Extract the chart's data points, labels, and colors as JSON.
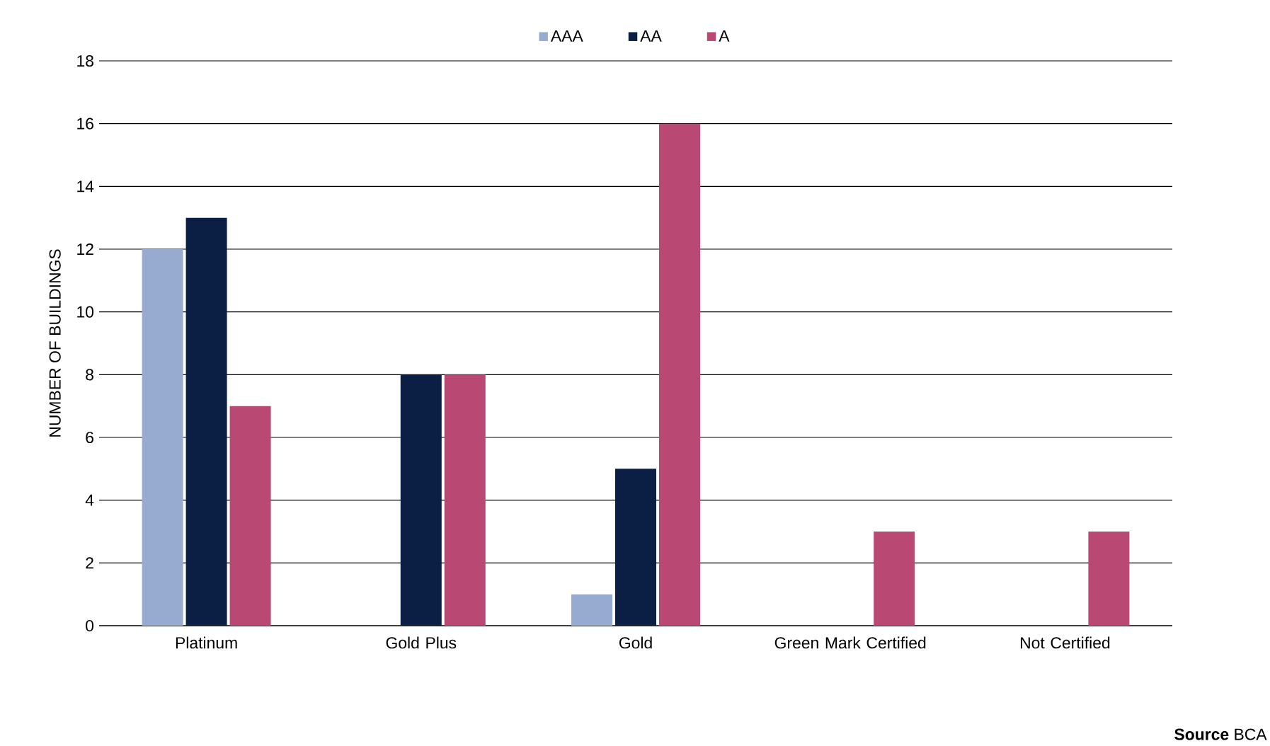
{
  "chart_data": {
    "type": "bar",
    "ylabel": "NUMBER OF BUILDINGS",
    "categories": [
      "Platinum",
      "Gold Plus",
      "Gold",
      "Green Mark Certified",
      "Not Certified"
    ],
    "series": [
      {
        "name": "AAA",
        "color": "#96abcf",
        "values": [
          12,
          0,
          1,
          0,
          0
        ]
      },
      {
        "name": "AA",
        "color": "#0b1f45",
        "values": [
          13,
          8,
          5,
          0,
          0
        ]
      },
      {
        "name": "A",
        "color": "#b94872",
        "values": [
          7,
          8,
          16,
          3,
          3
        ]
      }
    ],
    "ylim": [
      0,
      18
    ],
    "yticks": [
      0,
      2,
      4,
      6,
      8,
      10,
      12,
      14,
      16,
      18
    ],
    "grid": "y",
    "legend": "top",
    "annotations": [
      "**Source** BCA"
    ]
  }
}
